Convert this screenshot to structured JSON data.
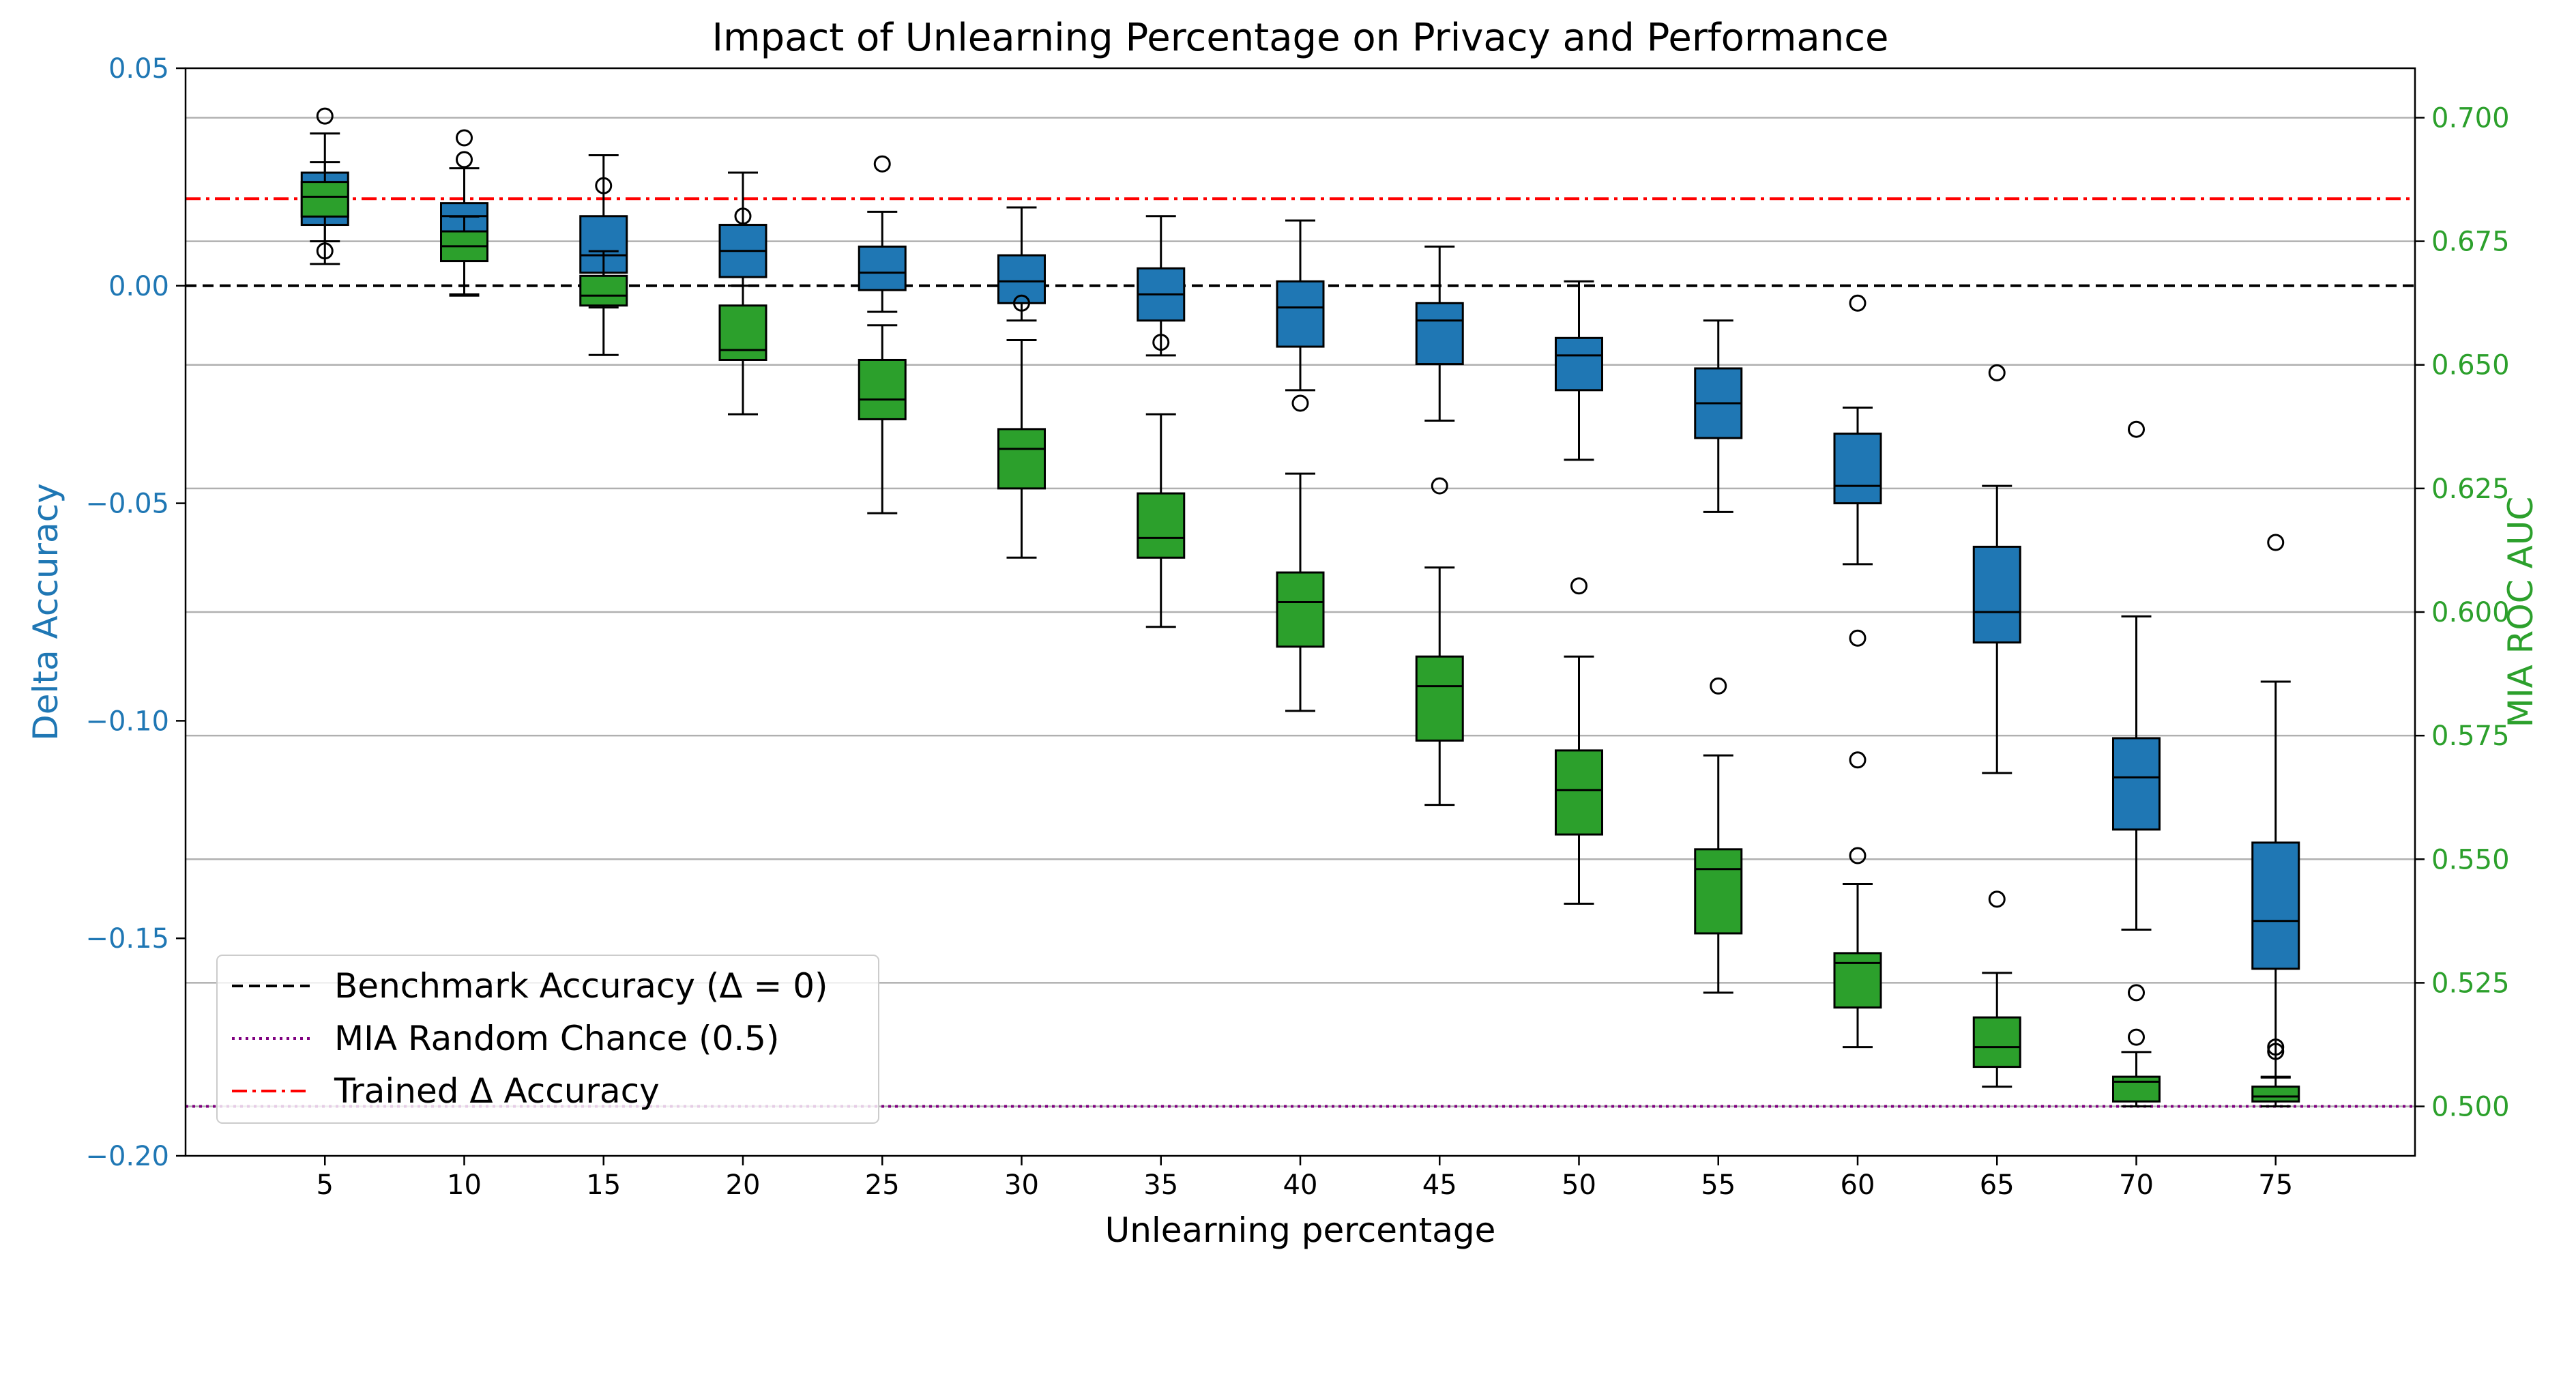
{
  "chart_data": {
    "type": "box",
    "title": "Impact of Unlearning Percentage on Privacy and Performance",
    "xlabel": "Unlearning percentage",
    "categories": [
      "5",
      "10",
      "15",
      "20",
      "25",
      "30",
      "35",
      "40",
      "45",
      "50",
      "55",
      "60",
      "65",
      "70",
      "75"
    ],
    "left_axis": {
      "label": "Delta Accuracy",
      "color": "#1f77b4",
      "range": [
        -0.2,
        0.05
      ],
      "ticks": [
        0.05,
        0.0,
        -0.05,
        -0.1,
        -0.15,
        -0.2
      ],
      "tick_labels": [
        "0.05",
        "0.00",
        "−0.05",
        "−0.10",
        "−0.15",
        "−0.20"
      ]
    },
    "right_axis": {
      "label": "MIA ROC AUC",
      "color": "#2ca02c",
      "range": [
        0.49,
        0.71
      ],
      "ticks": [
        0.5,
        0.525,
        0.55,
        0.575,
        0.6,
        0.625,
        0.65,
        0.675,
        0.7
      ],
      "tick_labels": [
        "0.500",
        "0.525",
        "0.550",
        "0.575",
        "0.600",
        "0.625",
        "0.650",
        "0.675",
        "0.700"
      ],
      "grid": true
    },
    "series": [
      {
        "name": "Delta Accuracy",
        "axis": "left",
        "color": "#1f77b4",
        "boxes": [
          {
            "whislo": 0.005,
            "q1": 0.014,
            "med": 0.018,
            "q3": 0.026,
            "whishi": 0.035,
            "fliers": [
              0.039,
              0.008
            ]
          },
          {
            "whislo": -0.002,
            "q1": 0.011,
            "med": 0.016,
            "q3": 0.019,
            "whishi": 0.027,
            "fliers": [
              0.034,
              0.029
            ]
          },
          {
            "whislo": -0.005,
            "q1": 0.003,
            "med": 0.007,
            "q3": 0.016,
            "whishi": 0.03,
            "fliers": [
              0.023
            ]
          },
          {
            "whislo": 0.0,
            "q1": 0.002,
            "med": 0.008,
            "q3": 0.014,
            "whishi": 0.026,
            "fliers": [
              0.016
            ]
          },
          {
            "whislo": -0.006,
            "q1": -0.001,
            "med": 0.003,
            "q3": 0.009,
            "whishi": 0.017,
            "fliers": [
              0.028
            ]
          },
          {
            "whislo": -0.008,
            "q1": -0.004,
            "med": 0.001,
            "q3": 0.007,
            "whishi": 0.018,
            "fliers": [
              -0.004
            ]
          },
          {
            "whislo": -0.016,
            "q1": -0.008,
            "med": -0.002,
            "q3": 0.004,
            "whishi": 0.016,
            "fliers": [
              -0.013
            ]
          },
          {
            "whislo": -0.024,
            "q1": -0.014,
            "med": -0.005,
            "q3": 0.001,
            "whishi": 0.015,
            "fliers": [
              -0.027
            ]
          },
          {
            "whislo": -0.031,
            "q1": -0.018,
            "med": -0.008,
            "q3": -0.004,
            "whishi": 0.009,
            "fliers": [
              -0.046
            ]
          },
          {
            "whislo": -0.04,
            "q1": -0.024,
            "med": -0.016,
            "q3": -0.012,
            "whishi": 0.001,
            "fliers": [
              -0.069
            ]
          },
          {
            "whislo": -0.052,
            "q1": -0.035,
            "med": -0.027,
            "q3": -0.019,
            "whishi": -0.008,
            "fliers": [
              -0.092
            ]
          },
          {
            "whislo": -0.064,
            "q1": -0.05,
            "med": -0.046,
            "q3": -0.034,
            "whishi": -0.028,
            "fliers": [
              -0.004,
              -0.081,
              -0.109,
              -0.131
            ]
          },
          {
            "whislo": -0.112,
            "q1": -0.082,
            "med": -0.075,
            "q3": -0.06,
            "whishi": -0.046,
            "fliers": [
              -0.02,
              -0.141
            ]
          },
          {
            "whislo": -0.148,
            "q1": -0.125,
            "med": -0.113,
            "q3": -0.104,
            "whishi": -0.076,
            "fliers": [
              -0.033
            ]
          },
          {
            "whislo": -0.182,
            "q1": -0.157,
            "med": -0.146,
            "q3": -0.128,
            "whishi": -0.091,
            "fliers": [
              -0.059,
              -0.176
            ]
          }
        ]
      },
      {
        "name": "MIA ROC AUC",
        "axis": "right",
        "color": "#2ca02c",
        "boxes": [
          {
            "whislo": 0.675,
            "q1": 0.68,
            "med": 0.684,
            "q3": 0.687,
            "whishi": 0.691,
            "fliers": []
          },
          {
            "whislo": 0.664,
            "q1": 0.671,
            "med": 0.674,
            "q3": 0.677,
            "whishi": 0.68,
            "fliers": []
          },
          {
            "whislo": 0.652,
            "q1": 0.662,
            "med": 0.664,
            "q3": 0.668,
            "whishi": 0.673,
            "fliers": []
          },
          {
            "whislo": 0.64,
            "q1": 0.651,
            "med": 0.653,
            "q3": 0.662,
            "whishi": 0.666,
            "fliers": []
          },
          {
            "whislo": 0.62,
            "q1": 0.639,
            "med": 0.643,
            "q3": 0.651,
            "whishi": 0.658,
            "fliers": []
          },
          {
            "whislo": 0.611,
            "q1": 0.625,
            "med": 0.633,
            "q3": 0.637,
            "whishi": 0.655,
            "fliers": []
          },
          {
            "whislo": 0.597,
            "q1": 0.611,
            "med": 0.615,
            "q3": 0.624,
            "whishi": 0.64,
            "fliers": []
          },
          {
            "whislo": 0.58,
            "q1": 0.593,
            "med": 0.602,
            "q3": 0.608,
            "whishi": 0.628,
            "fliers": []
          },
          {
            "whislo": 0.561,
            "q1": 0.574,
            "med": 0.585,
            "q3": 0.591,
            "whishi": 0.609,
            "fliers": []
          },
          {
            "whislo": 0.541,
            "q1": 0.555,
            "med": 0.564,
            "q3": 0.572,
            "whishi": 0.591,
            "fliers": []
          },
          {
            "whislo": 0.523,
            "q1": 0.535,
            "med": 0.548,
            "q3": 0.552,
            "whishi": 0.571,
            "fliers": []
          },
          {
            "whislo": 0.512,
            "q1": 0.52,
            "med": 0.529,
            "q3": 0.531,
            "whishi": 0.545,
            "fliers": []
          },
          {
            "whislo": 0.504,
            "q1": 0.508,
            "med": 0.512,
            "q3": 0.518,
            "whishi": 0.527,
            "fliers": []
          },
          {
            "whislo": 0.5,
            "q1": 0.501,
            "med": 0.505,
            "q3": 0.506,
            "whishi": 0.511,
            "fliers": [
              0.523,
              0.514
            ]
          },
          {
            "whislo": 0.5,
            "q1": 0.501,
            "med": 0.502,
            "q3": 0.504,
            "whishi": 0.506,
            "fliers": [
              0.512
            ]
          }
        ]
      }
    ],
    "reference_lines": [
      {
        "name": "Benchmark Accuracy (Δ = 0)",
        "axis": "left",
        "value": 0.0,
        "color": "#000000",
        "style": "dashed"
      },
      {
        "name": "MIA Random Chance (0.5)",
        "axis": "right",
        "value": 0.5,
        "color": "#800080",
        "style": "dotted"
      },
      {
        "name": "Trained Δ Accuracy",
        "axis": "left",
        "value": 0.02,
        "color": "#ff0000",
        "style": "dashdot"
      }
    ],
    "legend": {
      "position": "lower-left",
      "entries": [
        {
          "label": "Benchmark Accuracy (Δ = 0)",
          "color": "#000000",
          "style": "dashed"
        },
        {
          "label": "MIA Random Chance (0.5)",
          "color": "#800080",
          "style": "dotted"
        },
        {
          "label": "Trained Δ Accuracy",
          "color": "#ff0000",
          "style": "dashdot"
        }
      ]
    }
  }
}
